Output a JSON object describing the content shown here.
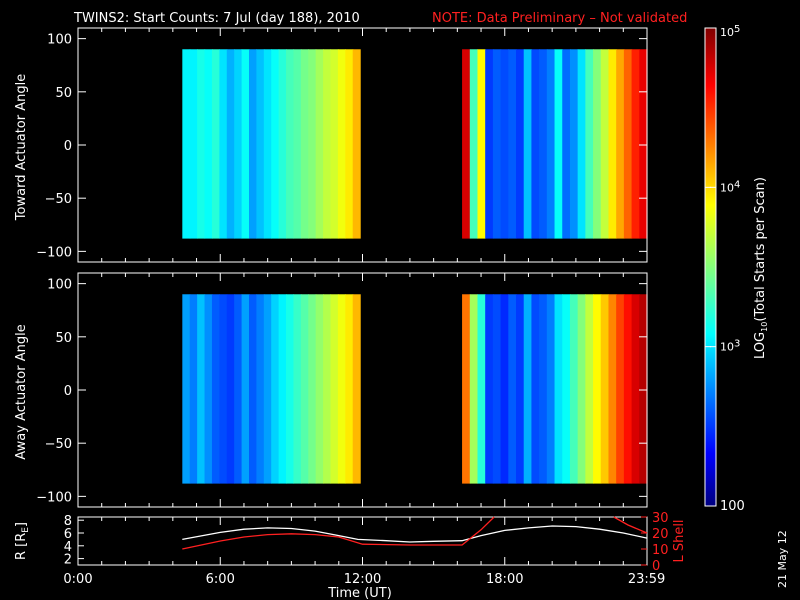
{
  "title": {
    "main": "TWINS2: Start Counts:  7 Jul (day 188), 2010",
    "note": "NOTE: Data Preliminary – Not validated",
    "note_color": "#ff2020"
  },
  "date_stamp": "21 May 12",
  "chart_data": [
    {
      "type": "heatmap",
      "panel": "toward",
      "ylabel": "Toward Actuator Angle",
      "xlabel": "",
      "xlim": [
        0,
        24
      ],
      "ylim": [
        -110,
        110
      ],
      "yticks": [
        -100,
        -50,
        0,
        50,
        100
      ],
      "y_extent": [
        -88,
        90
      ],
      "segments": [
        {
          "t_start": 4.4,
          "t_end": 11.9,
          "log_values": [
            3.05,
            3.05,
            3.15,
            3.1,
            3.2,
            3.0,
            2.85,
            2.95,
            3.1,
            2.8,
            2.9,
            3.0,
            3.1,
            3.2,
            3.3,
            3.35,
            3.45,
            3.5,
            3.6,
            3.7,
            3.75,
            3.85,
            3.95,
            4.1
          ]
        },
        {
          "t_start": 16.2,
          "t_end": 24.0,
          "log_values": [
            4.75,
            3.3,
            3.9,
            2.5,
            2.6,
            2.55,
            2.6,
            2.5,
            2.9,
            2.55,
            2.6,
            2.7,
            3.1,
            2.65,
            2.75,
            3.0,
            3.3,
            3.5,
            3.7,
            3.95,
            4.15,
            4.35,
            4.55,
            4.7
          ]
        }
      ]
    },
    {
      "type": "heatmap",
      "panel": "away",
      "ylabel": "Away Actuator Angle",
      "xlabel": "",
      "xlim": [
        0,
        24
      ],
      "ylim": [
        -110,
        110
      ],
      "yticks": [
        -100,
        -50,
        0,
        50,
        100
      ],
      "y_extent": [
        -88,
        90
      ],
      "segments": [
        {
          "t_start": 4.4,
          "t_end": 11.9,
          "log_values": [
            2.8,
            2.7,
            2.9,
            2.75,
            2.6,
            2.55,
            2.5,
            2.6,
            2.8,
            2.6,
            2.7,
            2.8,
            2.95,
            3.05,
            3.15,
            3.25,
            3.35,
            3.45,
            3.55,
            3.65,
            3.75,
            3.85,
            3.95,
            4.1
          ]
        },
        {
          "t_start": 16.2,
          "t_end": 24.0,
          "log_values": [
            4.3,
            3.6,
            3.2,
            2.5,
            2.55,
            2.45,
            2.6,
            2.5,
            2.85,
            2.55,
            2.6,
            2.7,
            3.0,
            3.1,
            3.3,
            3.5,
            3.7,
            3.9,
            4.05,
            4.25,
            4.45,
            4.6,
            4.75,
            4.85
          ]
        }
      ]
    },
    {
      "type": "line",
      "panel": "orbit",
      "xlabel": "Time (UT)",
      "xlim": [
        0,
        24
      ],
      "xticks": [
        0,
        6,
        12,
        18,
        23.983
      ],
      "xtick_labels": [
        "0:00",
        "6:00",
        "12:00",
        "18:00",
        "23:59"
      ],
      "ylabel_left": "R [R",
      "ylabel_left_sub": "E",
      "ylabel_left_end": "]",
      "ylabel_right": "L Shell",
      "ylim_left": [
        1,
        8.5
      ],
      "ylim_right": [
        0,
        30
      ],
      "yticks_left": [
        2,
        4,
        6,
        8
      ],
      "yticks_right": [
        0,
        10,
        20,
        30
      ],
      "series": [
        {
          "axis": "left",
          "color": "#ffffff",
          "x": [
            4.4,
            6,
            7,
            8,
            9,
            10,
            11,
            11.8,
            13,
            14,
            15,
            16.2,
            17,
            18,
            19,
            20,
            21,
            22,
            23,
            24
          ],
          "y": [
            5.0,
            6.1,
            6.6,
            6.8,
            6.7,
            6.3,
            5.6,
            5.0,
            4.8,
            4.6,
            4.7,
            4.8,
            5.6,
            6.4,
            6.8,
            7.1,
            7.0,
            6.6,
            6.0,
            5.2
          ]
        },
        {
          "axis": "right",
          "color": "#ff2020",
          "x": [
            4.4,
            6,
            7,
            8,
            9,
            10,
            11,
            12,
            14,
            16.2,
            17,
            17.55
          ],
          "y": [
            10,
            15,
            17.5,
            19,
            19.5,
            19,
            17.5,
            13,
            12.5,
            12.5,
            22,
            30
          ]
        },
        {
          "axis": "right",
          "color": "#ff2020",
          "x": [
            22.6,
            23.2,
            24
          ],
          "y": [
            30,
            25,
            20
          ]
        }
      ]
    }
  ],
  "colorbar": {
    "label": "LOG10(Total Starts per Scan)",
    "label_prefix": "LOG",
    "label_sub": "10",
    "label_suffix": "(Total Starts per Scan)",
    "range_log": [
      2,
      5
    ],
    "ticks_log": [
      2,
      3,
      4,
      5
    ],
    "tick_labels": [
      {
        "base": "100",
        "exp": ""
      },
      {
        "base": "10",
        "exp": "3"
      },
      {
        "base": "10",
        "exp": "4"
      },
      {
        "base": "10",
        "exp": "5"
      }
    ]
  }
}
